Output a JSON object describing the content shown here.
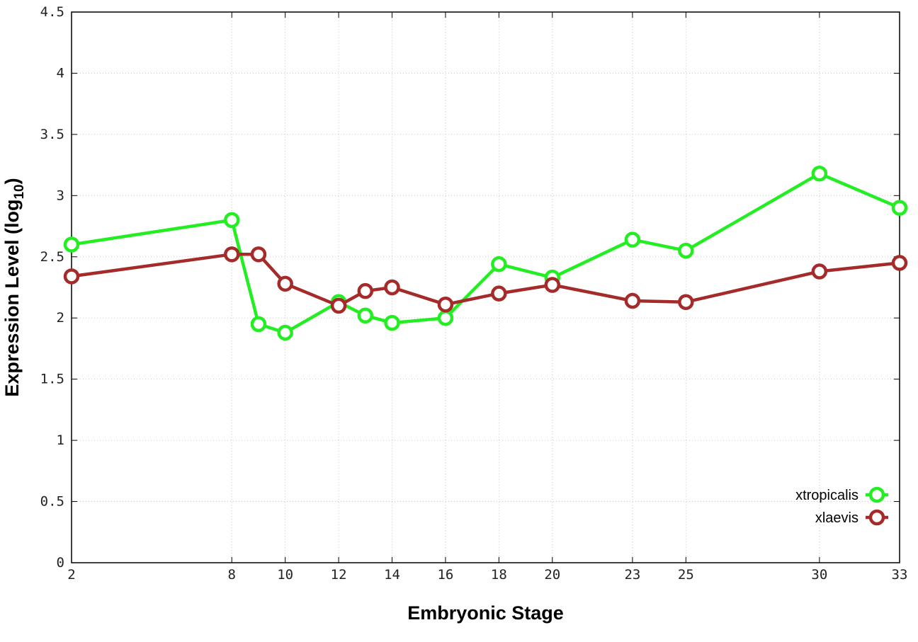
{
  "chart_data": {
    "type": "line",
    "title": "",
    "xlabel": "Embryonic Stage",
    "ylabel": "Expression Level (log",
    "ylabel_subscript": "10",
    "ylabel_suffix": ")",
    "x": [
      2,
      8,
      9,
      10,
      12,
      13,
      14,
      16,
      18,
      20,
      23,
      25,
      30,
      33
    ],
    "x_tick_labels": [
      "2",
      "8",
      "10",
      "12",
      "14",
      "16",
      "18",
      "20",
      "23",
      "25",
      "30",
      "33"
    ],
    "y_tick_labels": [
      "0",
      "0.5",
      "1",
      "1.5",
      "2",
      "2.5",
      "3",
      "3.5",
      "4",
      "4.5"
    ],
    "ylim": [
      0,
      4.5
    ],
    "grid": true,
    "legend_position": "bottom-right",
    "series": [
      {
        "name": "xtropicalis",
        "color": "#22ee22",
        "values": [
          2.6,
          2.8,
          1.95,
          1.88,
          2.13,
          2.02,
          1.96,
          2.0,
          2.44,
          2.33,
          2.64,
          2.55,
          3.18,
          2.9
        ]
      },
      {
        "name": "xlaevis",
        "color": "#a52a2a",
        "values": [
          2.34,
          2.52,
          2.52,
          2.28,
          2.1,
          2.22,
          2.25,
          2.11,
          2.2,
          2.27,
          2.14,
          2.13,
          2.38,
          2.45
        ]
      }
    ]
  }
}
